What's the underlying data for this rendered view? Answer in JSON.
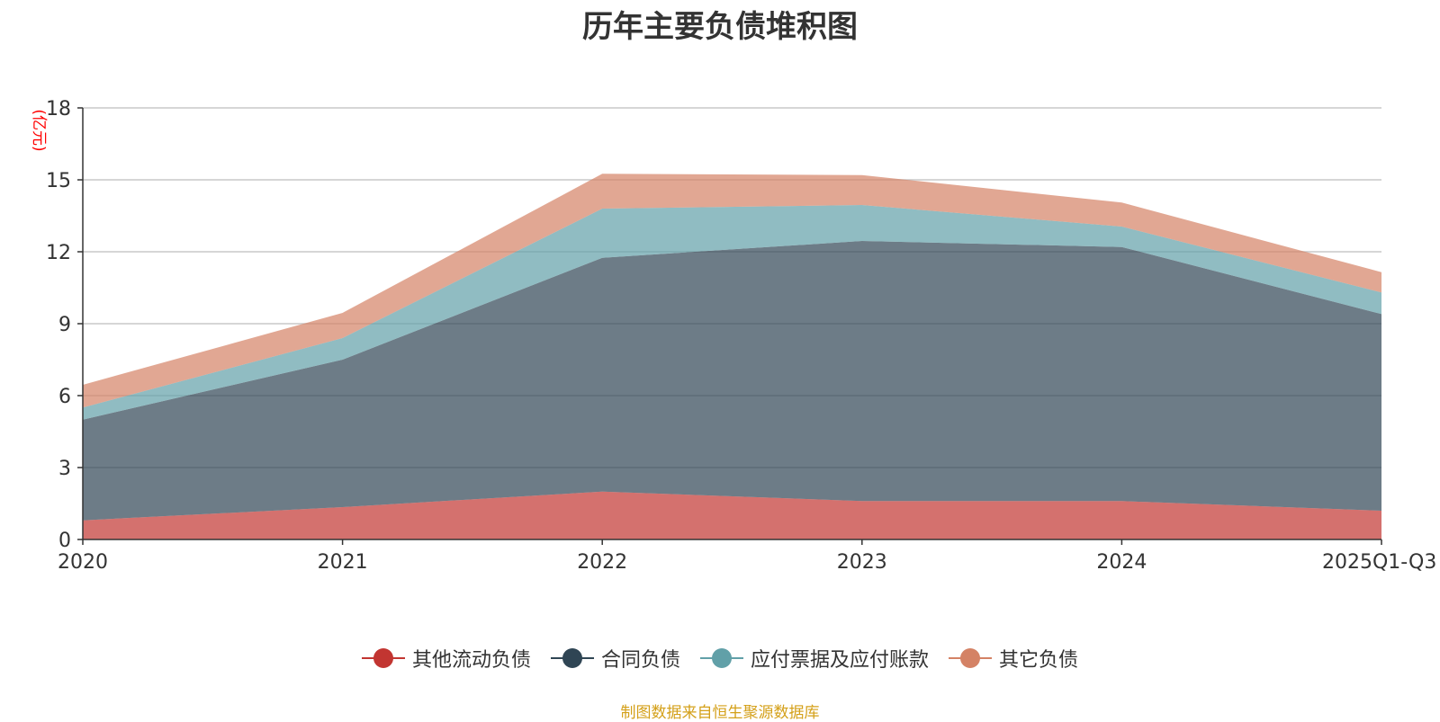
{
  "title": "历年主要负债堆积图",
  "source_note": "制图数据来自恒生聚源数据库",
  "chart_data": {
    "type": "area",
    "stacked": true,
    "title": "历年主要负债堆积图",
    "ylabel": "(亿元)",
    "xlabel": "",
    "categories": [
      "2020",
      "2021",
      "2022",
      "2023",
      "2024",
      "2025Q1-Q3"
    ],
    "ylim": [
      0,
      18
    ],
    "yticks": [
      0,
      3,
      6,
      9,
      12,
      15,
      18
    ],
    "grid": true,
    "legend_position": "bottom",
    "series": [
      {
        "name": "其他流动负债",
        "color": "#c23531",
        "values": [
          0.8,
          1.35,
          2.0,
          1.6,
          1.6,
          1.2
        ]
      },
      {
        "name": "合同负债",
        "color": "#2f4554",
        "values": [
          4.2,
          6.15,
          9.75,
          10.85,
          10.6,
          8.2
        ]
      },
      {
        "name": "应付票据及应付账款",
        "color": "#61a0a8",
        "values": [
          0.5,
          0.9,
          2.05,
          1.5,
          0.85,
          0.9
        ]
      },
      {
        "name": "其它负债",
        "color": "#d48265",
        "values": [
          0.95,
          1.05,
          1.45,
          1.25,
          1.0,
          0.85
        ]
      }
    ]
  }
}
